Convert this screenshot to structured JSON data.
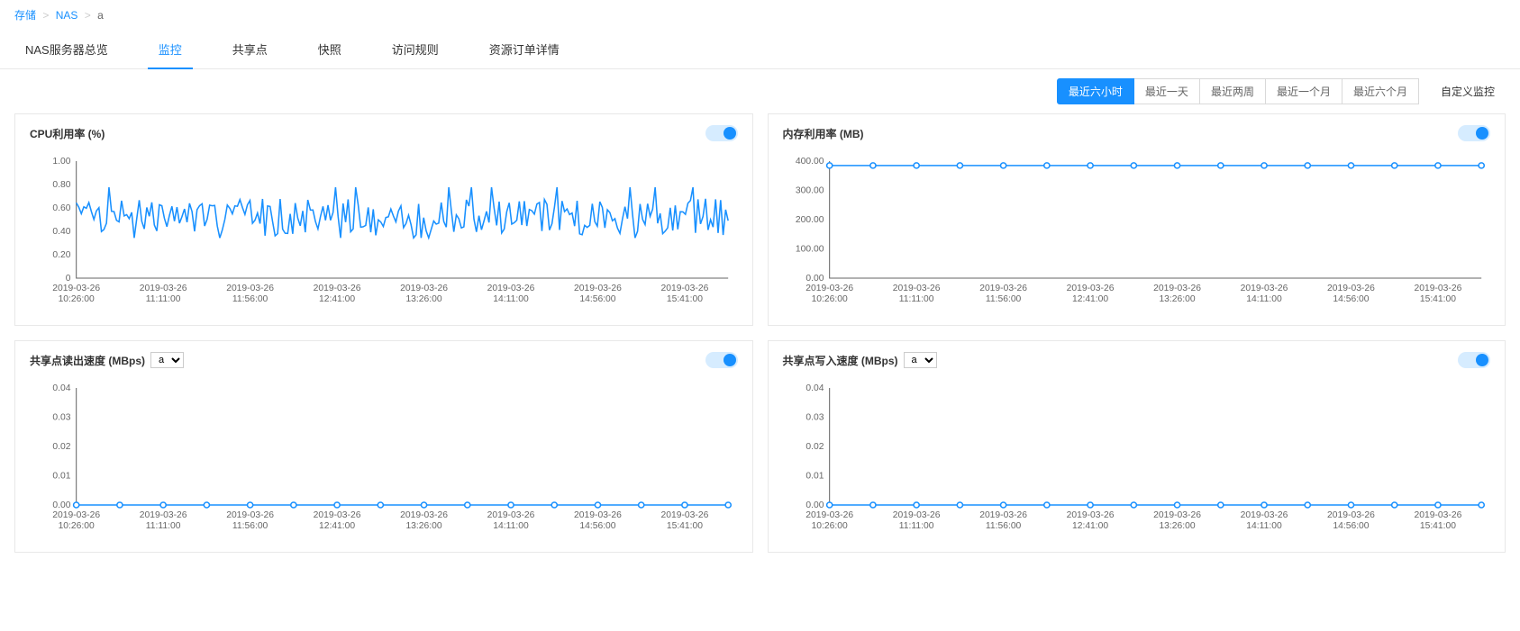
{
  "breadcrumb": {
    "root": "存储",
    "mid": "NAS",
    "current": "a"
  },
  "tabs": [
    {
      "label": "NAS服务器总览",
      "active": false
    },
    {
      "label": "监控",
      "active": true
    },
    {
      "label": "共享点",
      "active": false
    },
    {
      "label": "快照",
      "active": false
    },
    {
      "label": "访问规则",
      "active": false
    },
    {
      "label": "资源订单详情",
      "active": false
    }
  ],
  "time_range": {
    "options": [
      {
        "label": "最近六小时",
        "active": true
      },
      {
        "label": "最近一天",
        "active": false
      },
      {
        "label": "最近两周",
        "active": false
      },
      {
        "label": "最近一个月",
        "active": false
      },
      {
        "label": "最近六个月",
        "active": false
      }
    ],
    "custom_label": "自定义监控"
  },
  "x_date": "2019-03-26",
  "x_times": [
    "10:26:00",
    "11:11:00",
    "11:56:00",
    "12:41:00",
    "13:26:00",
    "14:11:00",
    "14:56:00",
    "15:41:00"
  ],
  "colors": {
    "line": "#1890ff",
    "axis": "#666666",
    "bg": "#ffffff",
    "grid": "#e0e0e0"
  },
  "charts": [
    {
      "id": "cpu",
      "title": "CPU利用率 (%)",
      "type": "line",
      "toggle": true,
      "has_select": false,
      "ylim": [
        0,
        1.0
      ],
      "ytick_step": 0.2,
      "yticks": [
        "0",
        "0.20",
        "0.40",
        "0.60",
        "0.80",
        "1.00"
      ],
      "mode": "noisy",
      "base": 0.52,
      "amp": 0.16,
      "samples": 260,
      "markers": false
    },
    {
      "id": "mem",
      "title": "内存利用率 (MB)",
      "type": "line",
      "toggle": true,
      "has_select": false,
      "ylim": [
        0,
        400
      ],
      "ytick_step": 100,
      "yticks": [
        "0.00",
        "100.00",
        "200.00",
        "300.00",
        "400.00"
      ],
      "mode": "flat",
      "value": 385,
      "samples": 16,
      "markers": true
    },
    {
      "id": "read",
      "title": "共享点读出速度 (MBps)",
      "type": "line",
      "toggle": true,
      "has_select": true,
      "select_value": "a",
      "ylim": [
        0,
        0.04
      ],
      "ytick_step": 0.01,
      "yticks": [
        "0.00",
        "0.01",
        "0.02",
        "0.03",
        "0.04"
      ],
      "mode": "flat",
      "value": 0,
      "samples": 16,
      "markers": true
    },
    {
      "id": "write",
      "title": "共享点写入速度 (MBps)",
      "type": "line",
      "toggle": true,
      "has_select": true,
      "select_value": "a",
      "ylim": [
        0,
        0.04
      ],
      "ytick_step": 0.01,
      "yticks": [
        "0.00",
        "0.01",
        "0.02",
        "0.03",
        "0.04"
      ],
      "mode": "flat",
      "value": 0,
      "samples": 16,
      "markers": true
    }
  ]
}
